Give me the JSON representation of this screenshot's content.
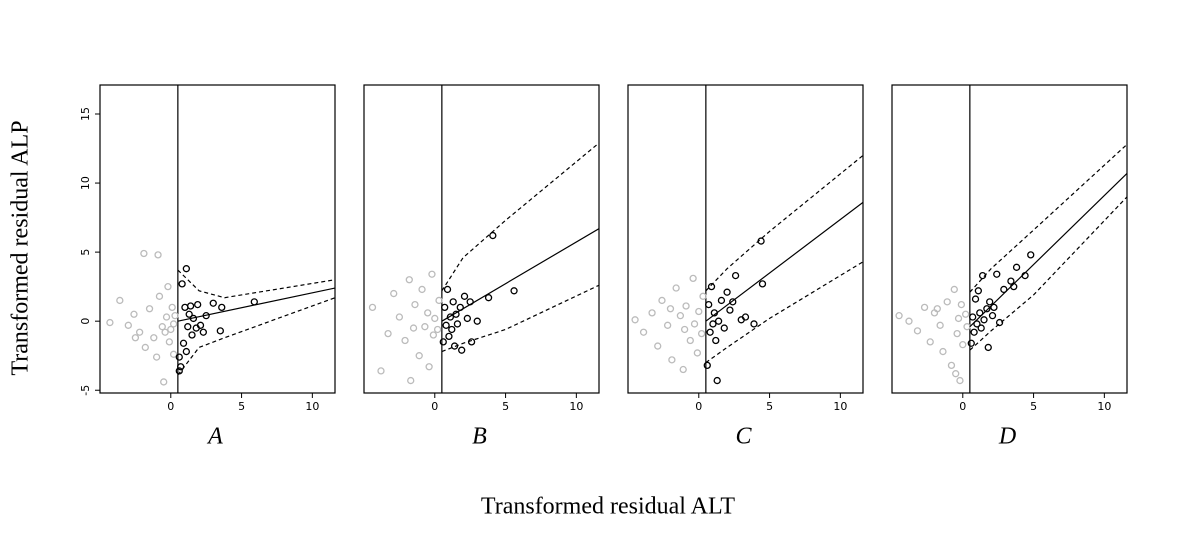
{
  "xlabel": "Transformed residual ALT",
  "ylabel": "Transformed residual ALP",
  "chart_data": [
    {
      "type": "scatter",
      "title": "A",
      "xlim": [
        -5,
        11.6
      ],
      "ylim": [
        -5.2,
        17.1
      ],
      "xticks": [
        0,
        5,
        10
      ],
      "yticks": [
        -5,
        0,
        5,
        10,
        15
      ],
      "threshold": 0.5,
      "series": [
        {
          "color": "#bbbbbb",
          "x": [
            -4.3,
            -3.6,
            -3.0,
            -2.6,
            -2.2,
            -1.9,
            -1.8,
            -1.5,
            -1.2,
            -0.9,
            -0.8,
            -0.6,
            -0.5,
            -0.3,
            -0.2,
            -0.1,
            0.0,
            0.1,
            0.2,
            0.3,
            -1.0,
            -2.5,
            -0.4,
            0.2
          ],
          "values": [
            -0.1,
            1.5,
            -0.3,
            0.5,
            -0.8,
            4.9,
            -1.9,
            0.9,
            -1.2,
            4.8,
            1.8,
            -0.4,
            -4.4,
            0.3,
            2.5,
            -1.5,
            -0.6,
            1.0,
            -2.4,
            0.4,
            -2.6,
            -1.2,
            -0.8,
            -0.2
          ]
        },
        {
          "color": "#000000",
          "x": [
            0.6,
            0.6,
            0.7,
            0.8,
            0.9,
            1.0,
            1.1,
            1.1,
            1.2,
            1.3,
            1.4,
            1.5,
            1.6,
            1.8,
            1.9,
            2.1,
            2.3,
            2.5,
            3.0,
            3.5,
            3.6,
            5.9
          ],
          "values": [
            -2.6,
            -3.6,
            -3.3,
            2.7,
            -1.6,
            1.0,
            3.8,
            -2.2,
            -0.4,
            0.5,
            1.1,
            -1.0,
            0.2,
            -0.5,
            1.2,
            -0.3,
            -0.8,
            0.4,
            1.3,
            -0.7,
            1.0,
            1.4
          ]
        }
      ],
      "lines": [
        {
          "style": "solid",
          "x": [
            0.5,
            11.6
          ],
          "values": [
            0,
            2.4
          ]
        },
        {
          "style": "dashed",
          "x": [
            0.5,
            2,
            3.8,
            11.6
          ],
          "values": [
            3.7,
            2.2,
            1.7,
            3.0
          ]
        },
        {
          "style": "dashed",
          "x": [
            0.5,
            2,
            3.8,
            11.6
          ],
          "values": [
            -3.9,
            -1.9,
            -1.2,
            1.7
          ]
        }
      ]
    },
    {
      "type": "scatter",
      "title": "B",
      "xlim": [
        -5,
        11.6
      ],
      "ylim": [
        -5.2,
        17.1
      ],
      "xticks": [
        0,
        5,
        10
      ],
      "threshold": 0.5,
      "series": [
        {
          "color": "#bbbbbb",
          "x": [
            -4.4,
            -3.8,
            -3.3,
            -2.9,
            -2.5,
            -2.1,
            -1.8,
            -1.7,
            -1.4,
            -1.1,
            -0.9,
            -0.7,
            -0.5,
            -0.4,
            -0.2,
            -0.1,
            0.0,
            0.2,
            0.3,
            -1.5
          ],
          "values": [
            1.0,
            -3.6,
            -0.9,
            2.0,
            0.3,
            -1.4,
            3.0,
            -4.3,
            1.2,
            -2.5,
            2.3,
            -0.4,
            0.6,
            -3.3,
            3.4,
            -1.0,
            0.2,
            -0.6,
            1.5,
            -0.5
          ]
        },
        {
          "color": "#000000",
          "x": [
            0.6,
            0.7,
            0.8,
            0.9,
            1.0,
            1.1,
            1.2,
            1.3,
            1.4,
            1.5,
            1.6,
            1.8,
            1.9,
            2.1,
            2.3,
            2.5,
            2.6,
            3.0,
            3.8,
            4.1,
            5.6
          ],
          "values": [
            -1.5,
            1.0,
            -0.3,
            2.3,
            -1.1,
            0.3,
            -0.6,
            1.4,
            -1.8,
            0.5,
            -0.2,
            1.0,
            -2.1,
            1.8,
            0.2,
            1.4,
            -1.5,
            0.0,
            1.7,
            6.2,
            2.2
          ]
        }
      ],
      "lines": [
        {
          "style": "solid",
          "x": [
            0.5,
            11.6
          ],
          "values": [
            0,
            6.7
          ]
        },
        {
          "style": "dashed",
          "x": [
            0.5,
            2,
            5,
            11.6
          ],
          "values": [
            2.2,
            4.6,
            7.3,
            12.9
          ]
        },
        {
          "style": "dashed",
          "x": [
            0.5,
            2,
            5,
            11.6
          ],
          "values": [
            -2.2,
            -1.6,
            -0.6,
            2.6
          ]
        }
      ]
    },
    {
      "type": "scatter",
      "title": "C",
      "xlim": [
        -5,
        11.6
      ],
      "ylim": [
        -5.2,
        17.1
      ],
      "xticks": [
        0,
        5,
        10
      ],
      "threshold": 0.5,
      "series": [
        {
          "color": "#bbbbbb",
          "x": [
            -4.5,
            -3.9,
            -3.3,
            -2.9,
            -2.6,
            -2.2,
            -1.9,
            -1.6,
            -1.3,
            -1.1,
            -0.9,
            -0.6,
            -0.4,
            -0.3,
            -0.1,
            0.0,
            0.2,
            0.3,
            -2.0,
            -1.0
          ],
          "values": [
            0.1,
            -0.8,
            0.6,
            -1.8,
            1.5,
            -0.3,
            -2.8,
            2.4,
            0.4,
            -3.5,
            1.1,
            -1.4,
            3.1,
            -0.2,
            -2.3,
            0.7,
            -0.9,
            1.8,
            0.9,
            -0.6
          ]
        },
        {
          "color": "#000000",
          "x": [
            0.6,
            0.7,
            0.8,
            0.9,
            1.0,
            1.1,
            1.2,
            1.3,
            1.4,
            1.6,
            1.8,
            2.0,
            2.2,
            2.4,
            2.6,
            3.0,
            3.3,
            3.9,
            4.4,
            4.5
          ],
          "values": [
            -3.2,
            1.2,
            -0.8,
            2.5,
            -0.2,
            0.6,
            -1.4,
            -4.3,
            0.0,
            1.5,
            -0.5,
            2.1,
            0.8,
            1.4,
            3.3,
            0.1,
            0.3,
            -0.2,
            5.8,
            2.7
          ]
        }
      ],
      "lines": [
        {
          "style": "solid",
          "x": [
            0.5,
            11.6
          ],
          "values": [
            0,
            8.6
          ]
        },
        {
          "style": "dashed",
          "x": [
            0.5,
            2,
            5,
            11.6
          ],
          "values": [
            2.2,
            3.8,
            6.5,
            12.0
          ]
        },
        {
          "style": "dashed",
          "x": [
            0.5,
            2,
            5,
            11.6
          ],
          "values": [
            -3.0,
            -1.9,
            0.2,
            4.3
          ]
        }
      ]
    },
    {
      "type": "scatter",
      "title": "D",
      "xlim": [
        -5,
        11.6
      ],
      "ylim": [
        -5.2,
        17.1
      ],
      "xticks": [
        0,
        5,
        10
      ],
      "threshold": 0.5,
      "series": [
        {
          "color": "#bbbbbb",
          "x": [
            -4.5,
            -3.8,
            -3.2,
            -2.7,
            -2.3,
            -2.0,
            -1.6,
            -1.4,
            -1.1,
            -0.8,
            -0.6,
            -0.4,
            -0.3,
            -0.2,
            -0.1,
            0.0,
            0.2,
            0.3,
            -0.5,
            -1.8
          ],
          "values": [
            0.4,
            0.0,
            -0.7,
            1.0,
            -1.5,
            0.6,
            -0.3,
            -2.2,
            1.4,
            -3.2,
            2.3,
            -0.9,
            0.2,
            -4.3,
            1.2,
            -1.7,
            0.5,
            -0.4,
            -3.8,
            0.9
          ]
        },
        {
          "color": "#000000",
          "x": [
            0.6,
            0.7,
            0.8,
            0.9,
            1.0,
            1.1,
            1.2,
            1.3,
            1.4,
            1.5,
            1.7,
            1.8,
            1.9,
            2.1,
            2.2,
            2.4,
            2.6,
            2.9,
            3.4,
            3.6,
            3.8,
            4.4,
            4.8
          ],
          "values": [
            -1.6,
            0.3,
            -0.8,
            1.6,
            -0.2,
            2.2,
            0.6,
            -0.5,
            3.3,
            0.1,
            0.9,
            -1.9,
            1.4,
            0.4,
            1.0,
            3.4,
            -0.1,
            2.3,
            2.9,
            2.5,
            3.9,
            3.3,
            4.8
          ]
        }
      ],
      "lines": [
        {
          "style": "solid",
          "x": [
            0.5,
            11.6
          ],
          "values": [
            -0.4,
            10.7
          ]
        },
        {
          "style": "dashed",
          "x": [
            0.5,
            2,
            5,
            11.6
          ],
          "values": [
            2.1,
            3.8,
            6.6,
            12.8
          ]
        },
        {
          "style": "dashed",
          "x": [
            0.5,
            2,
            5,
            11.6
          ],
          "values": [
            -2.1,
            -0.7,
            1.9,
            9.0
          ]
        }
      ]
    }
  ]
}
